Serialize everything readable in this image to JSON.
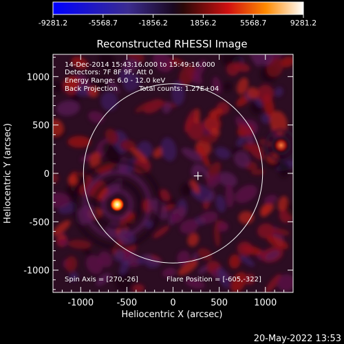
{
  "chart_data": {
    "type": "heatmap",
    "title": "Reconstructed RHESSI Image",
    "xlabel": "Heliocentric X (arcsec)",
    "ylabel": "Heliocentric Y (arcsec)",
    "xlim": [
      -1300,
      1300
    ],
    "ylim": [
      -1230,
      1230
    ],
    "x_ticks": [
      -1000,
      -500,
      0,
      500,
      1000
    ],
    "y_ticks": [
      -1000,
      -500,
      0,
      500,
      1000
    ],
    "colorbar": {
      "min": -9281.2,
      "max": 9281.2,
      "tick_values": [
        -9281.2,
        -5568.7,
        -1856.2,
        1856.2,
        5568.7,
        9281.2
      ],
      "tick_labels": [
        "-9281.2",
        "-5568.7",
        "-1856.2",
        "1856.2",
        "5568.7",
        "9281.2"
      ]
    },
    "annotations": {
      "time_range": "14-Dec-2014 15:43:16.000 to 15:49:16.000",
      "detectors": "Detectors: 7F 8F 9F, Att 0",
      "energy_range": "Energy Range: 6.0 - 12.0 keV",
      "method": "Back Projection",
      "total_counts": "Total counts: 1.27E+04",
      "spin_axis": "Spin Axis = [270,-26]",
      "flare_position": "Flare Position = [-605,-322]"
    },
    "solar_limb_radius_arcsec": 970,
    "flare_source": {
      "x": -605,
      "y": -322
    },
    "secondary_source": {
      "x": 1170,
      "y": 290
    },
    "spin_axis_marker": {
      "x": 270,
      "y": -26
    },
    "footer_date": "20-May-2022 13:53"
  }
}
